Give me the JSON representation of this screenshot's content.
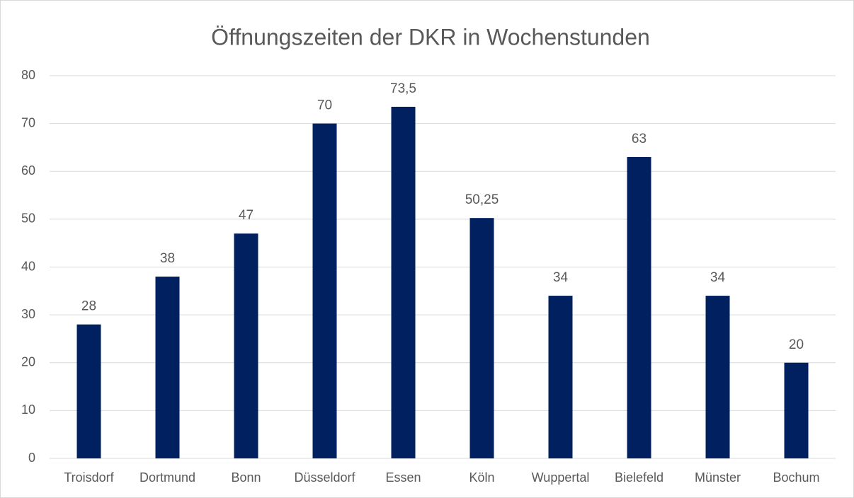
{
  "chart_data": {
    "type": "bar",
    "title": "Öffnungszeiten der DKR in Wochenstunden",
    "categories": [
      "Troisdorf",
      "Dortmund",
      "Bonn",
      "Düsseldorf",
      "Essen",
      "Köln",
      "Wuppertal",
      "Bielefeld",
      "Münster",
      "Bochum"
    ],
    "values": [
      28,
      38,
      47,
      70,
      73.5,
      50.25,
      34,
      63,
      34,
      20
    ],
    "value_labels": [
      "28",
      "38",
      "47",
      "70",
      "73,5",
      "50,25",
      "34",
      "63",
      "34",
      "20"
    ],
    "color": "#002060",
    "ylim": [
      0,
      80
    ],
    "yticks": [
      0,
      10,
      20,
      30,
      40,
      50,
      60,
      70,
      80
    ],
    "grid": true
  }
}
